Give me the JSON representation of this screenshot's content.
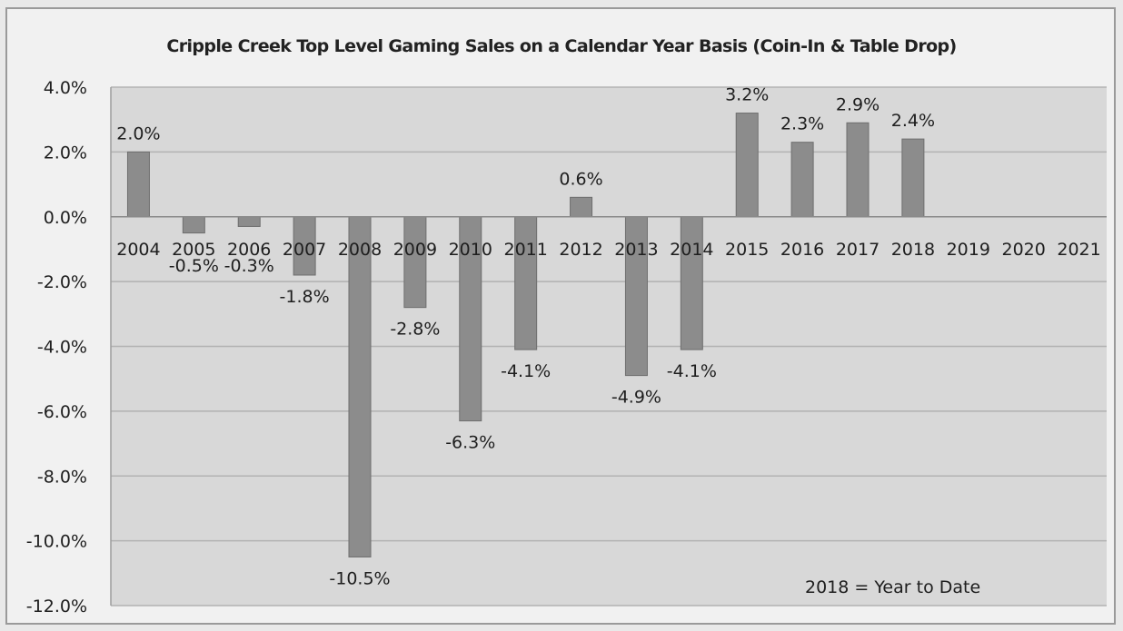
{
  "chart_data": {
    "type": "bar",
    "title": "Cripple Creek Top Level Gaming Sales on a Calendar Year Basis (Coin-In & Table Drop)",
    "categories": [
      "2004",
      "2005",
      "2006",
      "2007",
      "2008",
      "2009",
      "2010",
      "2011",
      "2012",
      "2013",
      "2014",
      "2015",
      "2016",
      "2017",
      "2018",
      "2019",
      "2020",
      "2021"
    ],
    "values": [
      2.0,
      -0.5,
      -0.3,
      -1.8,
      -10.5,
      -2.8,
      -6.3,
      -4.1,
      0.6,
      -4.9,
      -4.1,
      3.2,
      2.3,
      2.9,
      2.4,
      null,
      null,
      null
    ],
    "data_labels": [
      "2.0%",
      "-0.5%",
      "-0.3%",
      "-1.8%",
      "-10.5%",
      "-2.8%",
      "-6.3%",
      "-4.1%",
      "0.6%",
      "-4.9%",
      "-4.1%",
      "3.2%",
      "2.3%",
      "2.9%",
      "2.4%",
      "",
      "",
      ""
    ],
    "ylim": [
      -12,
      4
    ],
    "yticks": [
      4,
      2,
      0,
      -2,
      -4,
      -6,
      -8,
      -10,
      -12
    ],
    "ytick_labels": [
      "4.0%",
      "2.0%",
      "0.0%",
      "-2.0%",
      "-4.0%",
      "-6.0%",
      "-8.0%",
      "-10.0%",
      "-12.0%"
    ],
    "xlabel": "",
    "ylabel": "",
    "grid": true,
    "legend": "none",
    "annotation": "2018 = Year to Date",
    "colors": {
      "plot_background": "#d8d8d8",
      "bar_fill": "#8c8c8c",
      "bar_stroke": "#6e6e6e",
      "gridline": "#b2b2b2",
      "text": "#1e1e1e"
    }
  }
}
